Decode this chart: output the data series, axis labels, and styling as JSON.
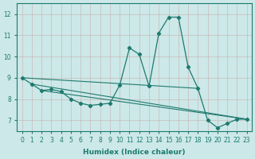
{
  "xlabel": "Humidex (Indice chaleur)",
  "ylabel": "",
  "bg_color": "#cce8e8",
  "grid_color": "#b8d8d8",
  "line_color": "#1e7a6e",
  "marker_color": "#1e7a6e",
  "xlim": [
    -0.5,
    23.5
  ],
  "ylim": [
    6.5,
    12.5
  ],
  "yticks": [
    7,
    8,
    9,
    10,
    11,
    12
  ],
  "xticks": [
    0,
    1,
    2,
    3,
    4,
    5,
    6,
    7,
    8,
    9,
    10,
    11,
    12,
    13,
    14,
    15,
    16,
    17,
    18,
    19,
    20,
    21,
    22,
    23
  ],
  "series": [
    {
      "x": [
        0,
        1,
        2,
        3,
        4,
        5,
        6,
        7,
        8,
        9,
        10,
        11,
        12,
        13,
        14,
        15,
        16,
        17,
        18,
        19,
        20,
        21,
        22,
        23
      ],
      "y": [
        9.0,
        8.7,
        8.4,
        8.45,
        8.35,
        8.0,
        7.8,
        7.7,
        7.75,
        7.8,
        8.65,
        10.4,
        10.1,
        8.6,
        11.1,
        11.85,
        11.85,
        9.5,
        8.5,
        7.0,
        6.65,
        6.85,
        7.05,
        7.05
      ],
      "has_markers": true
    },
    {
      "x": [
        0,
        18
      ],
      "y": [
        9.0,
        8.5
      ],
      "has_markers": false
    },
    {
      "x": [
        1,
        23
      ],
      "y": [
        8.7,
        7.05
      ],
      "has_markers": false
    },
    {
      "x": [
        2,
        23
      ],
      "y": [
        8.4,
        7.05
      ],
      "has_markers": false
    }
  ]
}
